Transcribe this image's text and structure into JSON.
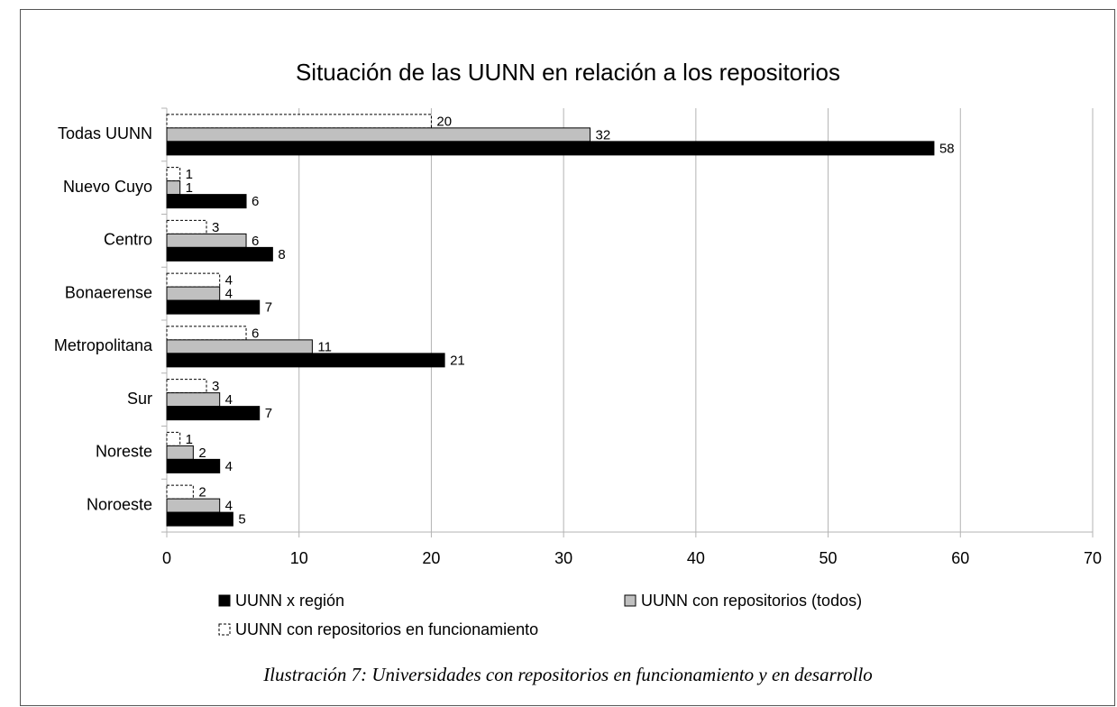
{
  "chart_data": {
    "type": "hbar",
    "title": "Situación de las UUNN en relación a los repositorios",
    "caption": "Ilustración 7: Universidades con repositorios en funcionamiento y en desarrollo",
    "categories": [
      "Todas UUNN",
      "Nuevo Cuyo",
      "Centro",
      "Bonaerense",
      "Metropolitana",
      "Sur",
      "Noreste",
      "Noroeste"
    ],
    "series": [
      {
        "name": "UUNN x región",
        "color": "#000000",
        "border": "solid",
        "values": [
          58,
          6,
          8,
          7,
          21,
          7,
          4,
          5
        ]
      },
      {
        "name": "UUNN con repositorios (todos)",
        "color": "#c0c0c0",
        "border": "solid",
        "values": [
          32,
          1,
          6,
          4,
          11,
          4,
          2,
          4
        ]
      },
      {
        "name": "UUNN con repositorios en funcionamiento",
        "color": "#ffffff",
        "border": "dashed",
        "values": [
          20,
          1,
          3,
          4,
          6,
          3,
          1,
          2
        ]
      }
    ],
    "xlim": [
      0,
      70
    ],
    "xticks": [
      0,
      10,
      20,
      30,
      40,
      50,
      60,
      70
    ],
    "grid": true
  }
}
